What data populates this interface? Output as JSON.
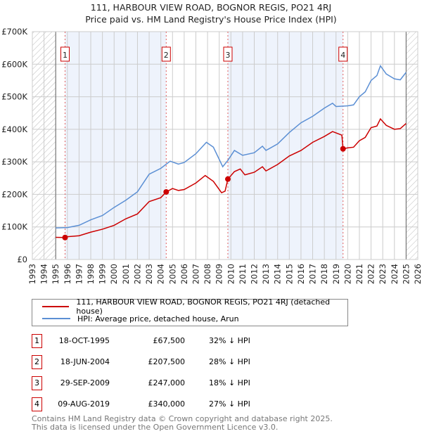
{
  "title": "111, HARBOUR VIEW ROAD, BOGNOR REGIS, PO21 4RJ",
  "subtitle": "Price paid vs. HM Land Registry's House Price Index (HPI)",
  "chart_data": {
    "type": "line",
    "ylim": [
      0,
      700000
    ],
    "xlim": [
      1993,
      2026
    ],
    "yticks": [
      "£0",
      "£100K",
      "£200K",
      "£300K",
      "£400K",
      "£500K",
      "£600K",
      "£700K"
    ],
    "xticks": [
      "1993",
      "1994",
      "1995",
      "1996",
      "1997",
      "1998",
      "1999",
      "2000",
      "2001",
      "2002",
      "2003",
      "2004",
      "2005",
      "2006",
      "2007",
      "2008",
      "2009",
      "2010",
      "2011",
      "2012",
      "2013",
      "2014",
      "2015",
      "2016",
      "2017",
      "2018",
      "2019",
      "2020",
      "2021",
      "2022",
      "2023",
      "2024",
      "2025",
      "2026"
    ],
    "series": [
      {
        "name": "111, HARBOUR VIEW ROAD, BOGNOR REGIS, PO21 4RJ (detached house)",
        "color": "#cc0000",
        "x": [
          1995,
          1995.8,
          1996,
          1997,
          1998,
          1999,
          2000,
          2001,
          2002,
          2003,
          2004,
          2004.46,
          2005,
          2005.5,
          2006,
          2007,
          2007.8,
          2008.5,
          2009.2,
          2009.5,
          2009.74,
          2010.3,
          2010.8,
          2011.2,
          2012,
          2012.7,
          2013,
          2014,
          2015,
          2016,
          2017,
          2018,
          2018.7,
          2019.5,
          2019.6,
          2020,
          2020.5,
          2021,
          2021.5,
          2022,
          2022.5,
          2022.8,
          2023.3,
          2024,
          2024.5,
          2025
        ],
        "y": [
          68000,
          67500,
          70000,
          73000,
          84000,
          93000,
          105000,
          125000,
          140000,
          178000,
          190000,
          207500,
          218000,
          212000,
          215000,
          235000,
          258000,
          240000,
          205000,
          210000,
          247000,
          270000,
          278000,
          260000,
          268000,
          285000,
          272000,
          292000,
          318000,
          335000,
          360000,
          378000,
          393000,
          382000,
          340000,
          343000,
          345000,
          365000,
          375000,
          405000,
          410000,
          432000,
          412000,
          400000,
          402000,
          418000
        ]
      },
      {
        "name": "HPI: Average price, detached house, Arun",
        "color": "#5b8fd4",
        "x": [
          1995,
          1996,
          1997,
          1998,
          1999,
          2000,
          2001,
          2002,
          2003,
          2004,
          2004.8,
          2005.5,
          2006,
          2007,
          2007.9,
          2008.5,
          2009.3,
          2009.75,
          2010.3,
          2011,
          2012,
          2012.7,
          2013,
          2014,
          2015,
          2016,
          2017,
          2018,
          2018.7,
          2019,
          2020,
          2020.5,
          2021,
          2021.5,
          2022,
          2022.5,
          2022.8,
          2023.3,
          2024,
          2024.5,
          2025
        ],
        "y": [
          97000,
          98000,
          105000,
          122000,
          135000,
          160000,
          182000,
          208000,
          262000,
          280000,
          302000,
          293000,
          298000,
          325000,
          360000,
          345000,
          285000,
          305000,
          335000,
          320000,
          328000,
          348000,
          335000,
          355000,
          390000,
          420000,
          440000,
          465000,
          480000,
          470000,
          472000,
          475000,
          500000,
          515000,
          550000,
          565000,
          595000,
          570000,
          555000,
          552000,
          575000
        ]
      }
    ],
    "sales": [
      {
        "id": "1",
        "x": 1995.8,
        "y": 67500
      },
      {
        "id": "2",
        "x": 2004.46,
        "y": 207500
      },
      {
        "id": "3",
        "x": 2009.74,
        "y": 247000
      },
      {
        "id": "4",
        "x": 2019.6,
        "y": 340000
      }
    ],
    "shaded": [
      [
        1995.8,
        2004.46
      ],
      [
        2009.74,
        2019.6
      ]
    ],
    "hatched": [
      [
        1993,
        1995
      ],
      [
        2025,
        2026
      ]
    ]
  },
  "legend": [
    "111, HARBOUR VIEW ROAD, BOGNOR REGIS, PO21 4RJ (detached house)",
    "HPI: Average price, detached house, Arun"
  ],
  "transactions": [
    {
      "num": "1",
      "date": "18-OCT-1995",
      "price": "£67,500",
      "hpi": "32% ↓ HPI"
    },
    {
      "num": "2",
      "date": "18-JUN-2004",
      "price": "£207,500",
      "hpi": "28% ↓ HPI"
    },
    {
      "num": "3",
      "date": "29-SEP-2009",
      "price": "£247,000",
      "hpi": "18% ↓ HPI"
    },
    {
      "num": "4",
      "date": "09-AUG-2019",
      "price": "£340,000",
      "hpi": "27% ↓ HPI"
    }
  ],
  "footer": [
    "Contains HM Land Registry data © Crown copyright and database right 2025.",
    "This data is licensed under the Open Government Licence v3.0."
  ]
}
